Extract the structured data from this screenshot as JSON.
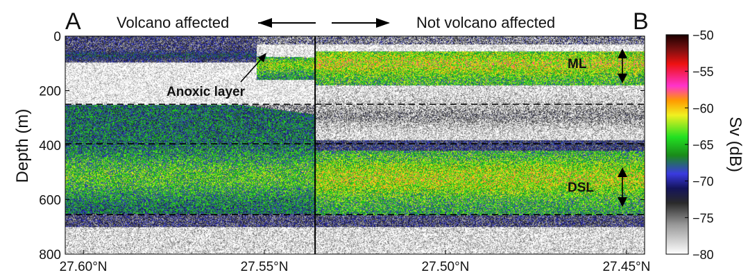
{
  "chart_data": {
    "type": "heatmap",
    "panel_labels": {
      "left": "A",
      "right": "B"
    },
    "header": {
      "left": "Volcano affected",
      "right": "Not volcano affected"
    },
    "x_ticks": [
      "27.60°N",
      "27.55°N",
      "27.50°N",
      "27.45°N"
    ],
    "x_tick_values": [
      27.6,
      27.55,
      27.5,
      27.45
    ],
    "x_range": [
      27.605,
      27.445
    ],
    "ylabel": "Depth (m)",
    "y_range": [
      0,
      800
    ],
    "y_ticks": [
      0,
      200,
      400,
      600,
      800
    ],
    "divider_latitude": 27.536,
    "dashed_depths": [
      250,
      395,
      655
    ],
    "colorbar": {
      "label": "Sv (dB)",
      "range": [
        -80,
        -50
      ],
      "ticks": [
        -50,
        -55,
        -60,
        -65,
        -70,
        -75,
        -80
      ],
      "stops": [
        {
          "value": -80,
          "color": "#ffffff"
        },
        {
          "value": -76,
          "color": "#9a9a9a"
        },
        {
          "value": -73,
          "color": "#2a2a2a"
        },
        {
          "value": -71,
          "color": "#14145a"
        },
        {
          "value": -69,
          "color": "#3a3ae0"
        },
        {
          "value": -66.5,
          "color": "#1a8a1a"
        },
        {
          "value": -64,
          "color": "#22e022"
        },
        {
          "value": -61,
          "color": "#f0f020"
        },
        {
          "value": -59,
          "color": "#ff9a00"
        },
        {
          "value": -57,
          "color": "#ff33cc"
        },
        {
          "value": -54,
          "color": "#ee1111"
        },
        {
          "value": -52,
          "color": "#7a1010"
        },
        {
          "value": -50,
          "color": "#1a0000"
        }
      ]
    },
    "annotations": {
      "anoxic": "Anoxic layer",
      "ml": "ML",
      "dsl": "DSL"
    },
    "layers": [
      {
        "name": "ML",
        "side": "both",
        "depth_top": 60,
        "depth_bottom": 175,
        "strength": -66
      },
      {
        "name": "DSL",
        "side": "both",
        "depth_top": 430,
        "depth_bottom": 650,
        "strength": -66
      }
    ]
  }
}
